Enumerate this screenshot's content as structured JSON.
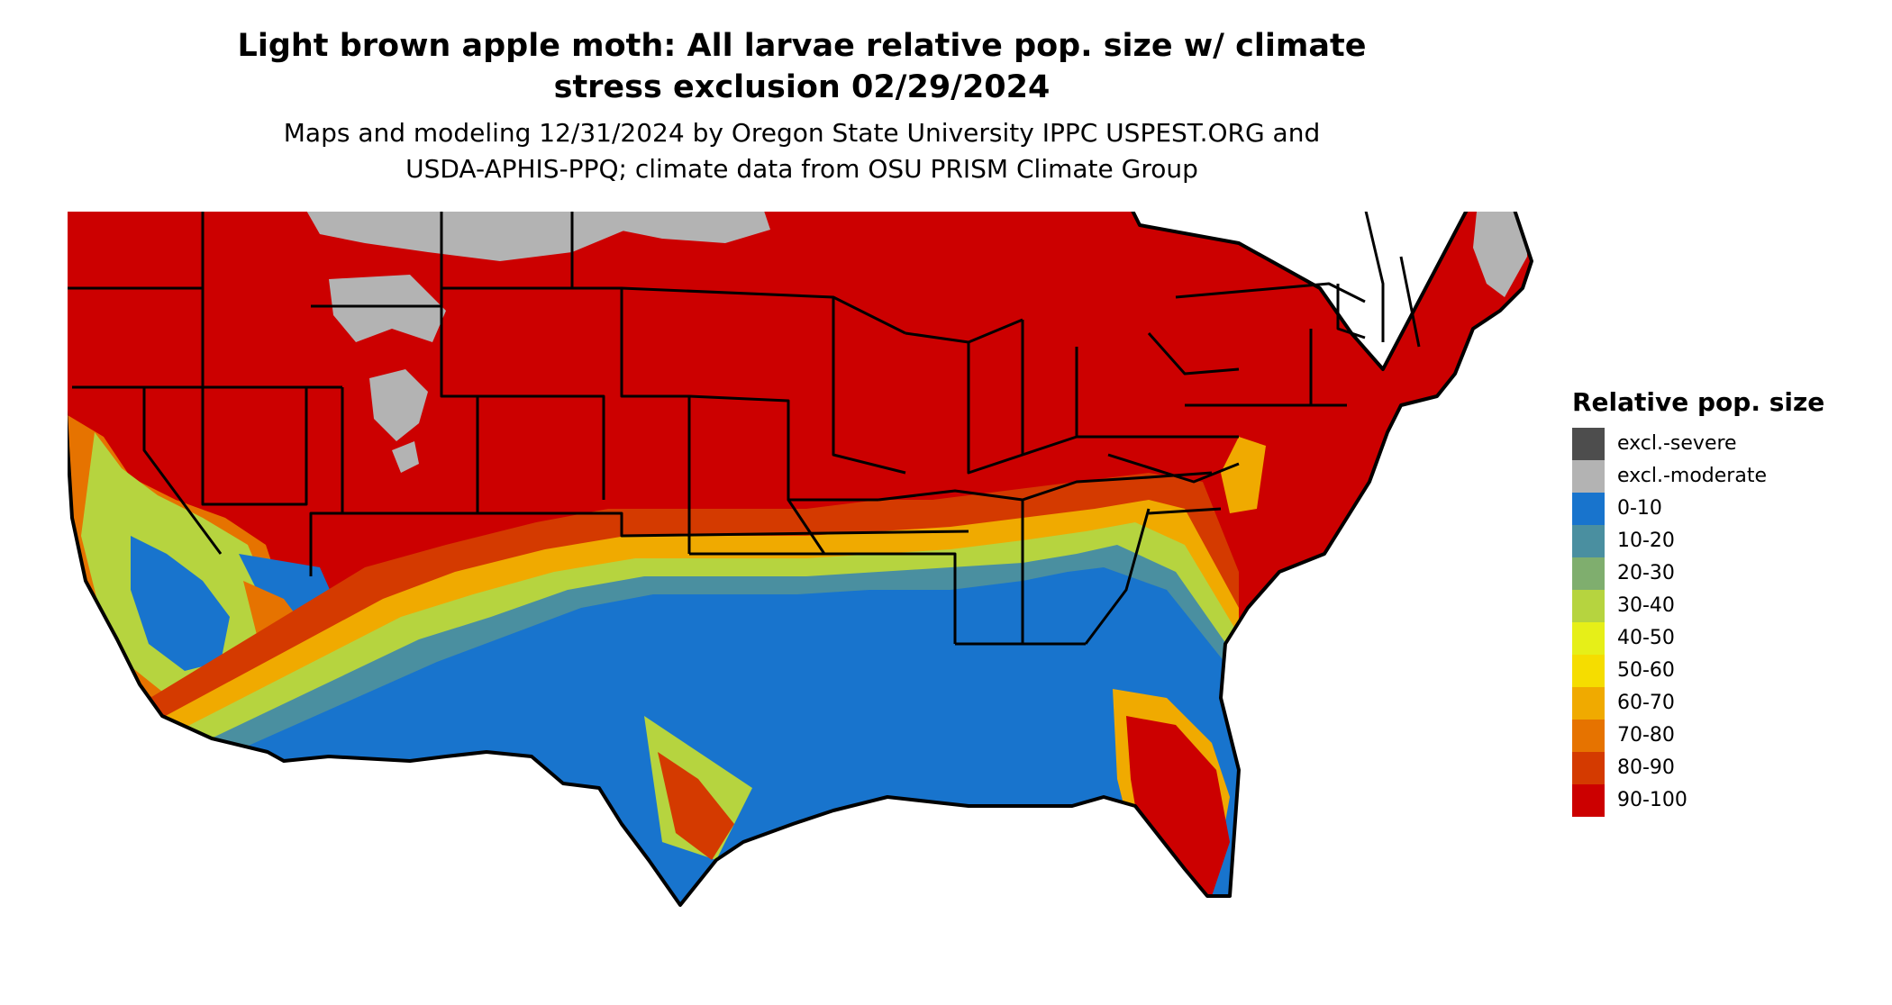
{
  "title_line1": "Light brown apple moth: All larvae relative pop. size w/ climate",
  "title_line2": "stress exclusion 02/29/2024",
  "subtitle_line1": "Maps and modeling 12/31/2024 by Oregon State University IPPC USPEST.ORG and",
  "subtitle_line2": "USDA-APHIS-PPQ; climate data from OSU PRISM Climate Group",
  "legend": {
    "title": "Relative pop. size",
    "items": [
      {
        "label": "excl.-severe",
        "color": "#4d4d4d"
      },
      {
        "label": "excl.-moderate",
        "color": "#b3b3b3"
      },
      {
        "label": "0-10",
        "color": "#1874cd"
      },
      {
        "label": "10-20",
        "color": "#4a8fa0"
      },
      {
        "label": "20-30",
        "color": "#7fae6e"
      },
      {
        "label": "30-40",
        "color": "#b6d43f"
      },
      {
        "label": "40-50",
        "color": "#e6ef18"
      },
      {
        "label": "50-60",
        "color": "#f5dd00"
      },
      {
        "label": "60-70",
        "color": "#f0aa00"
      },
      {
        "label": "70-80",
        "color": "#e67300"
      },
      {
        "label": "80-90",
        "color": "#d43a00"
      },
      {
        "label": "90-100",
        "color": "#cc0000"
      }
    ]
  }
}
